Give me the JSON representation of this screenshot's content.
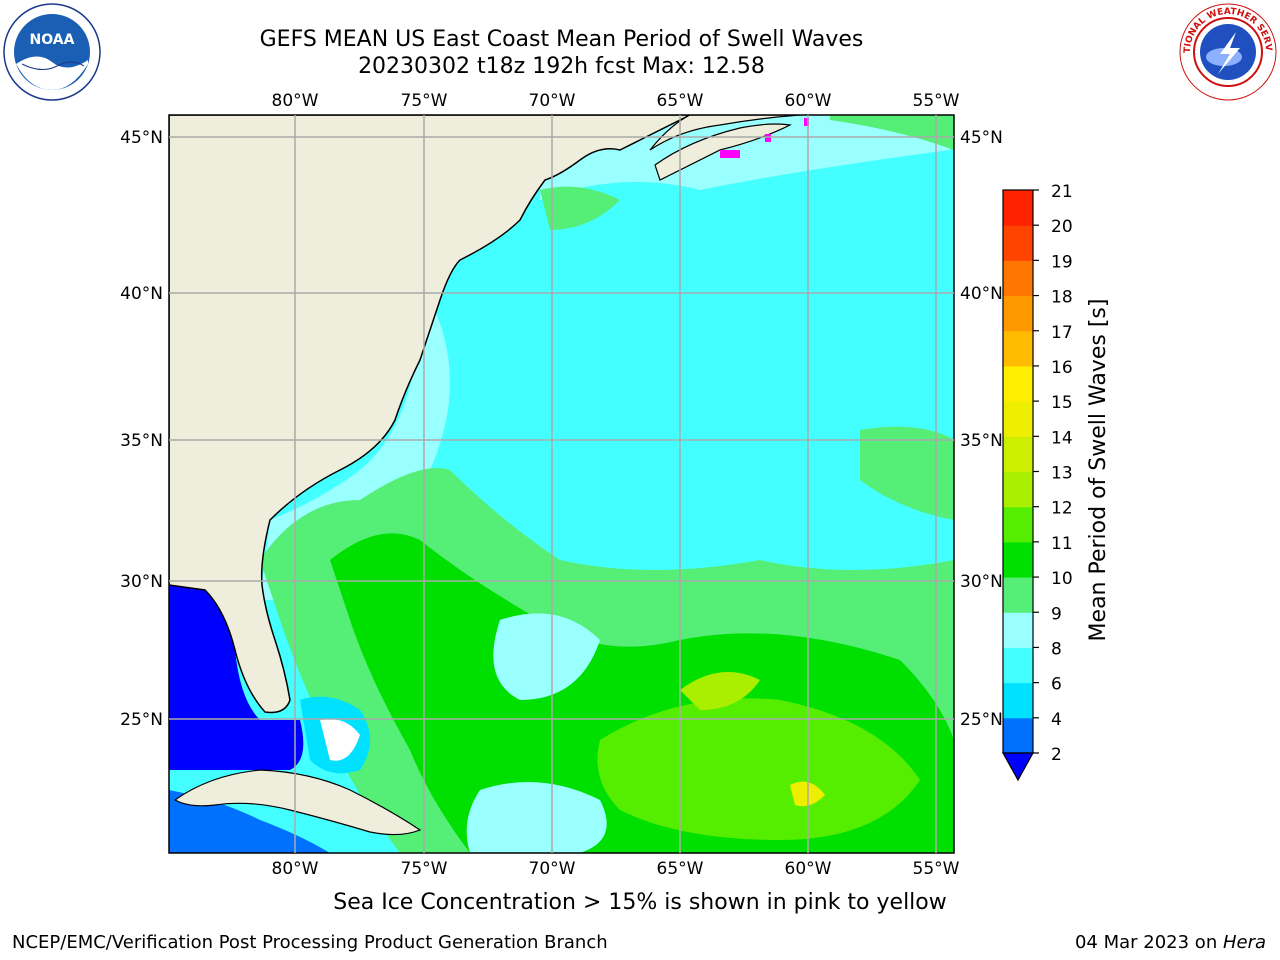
{
  "title": {
    "line1": "GEFS MEAN US East Coast Mean Period of Swell Waves",
    "line2": "20230302 t18z 192h fcst   Max: 12.58"
  },
  "map": {
    "lon_ticks": [
      "80°W",
      "75°W",
      "70°W",
      "65°W",
      "60°W",
      "55°W"
    ],
    "lat_ticks": [
      "45°N",
      "40°N",
      "35°N",
      "30°N",
      "25°N"
    ],
    "land_color": "#efeedd",
    "grid_color": "#aaaaaa"
  },
  "colorbar": {
    "label": "Mean Period of Swell Waves [s]",
    "ticks": [
      "2",
      "4",
      "6",
      "8",
      "9",
      "10",
      "11",
      "12",
      "13",
      "14",
      "15",
      "16",
      "17",
      "18",
      "19",
      "20",
      "21"
    ],
    "colors": [
      "#0000ff",
      "#0070ff",
      "#00e0ff",
      "#44ffff",
      "#99ffff",
      "#55ee77",
      "#00e000",
      "#55ee00",
      "#aaee00",
      "#ccee00",
      "#eeee00",
      "#ffee00",
      "#ffbb00",
      "#ff9900",
      "#ff7700",
      "#ff4400",
      "#ff2200",
      "#ff0000"
    ],
    "under_color": "#0000ff"
  },
  "note": "Sea Ice Concentration > 15% is shown in pink to yellow",
  "footer": {
    "left": "NCEP/EMC/Verification Post Processing Product Generation Branch",
    "date": "04 Mar 2023 on ",
    "host": "Hera"
  },
  "logos": {
    "noaa_text": "NOAA",
    "nws_text": "NATIONAL WEATHER SERVICE"
  }
}
